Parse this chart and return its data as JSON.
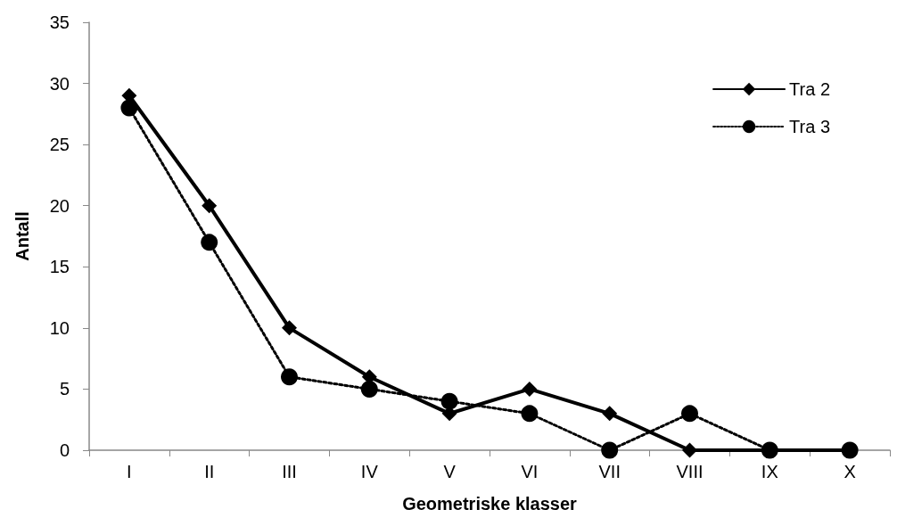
{
  "chart_data": {
    "type": "line",
    "xlabel": "Geometriske klasser",
    "ylabel": "Antall",
    "categories": [
      "I",
      "II",
      "III",
      "IV",
      "V",
      "VI",
      "VII",
      "VIII",
      "IX",
      "X"
    ],
    "series": [
      {
        "name": "Tra 2",
        "color": "#000000",
        "marker": "diamond",
        "line_style": "solid",
        "values": [
          29,
          20,
          10,
          6,
          3,
          5,
          3,
          0,
          0,
          0
        ]
      },
      {
        "name": "Tra 3",
        "color": "#000000",
        "marker": "circle",
        "line_style": "dotted",
        "values": [
          28,
          17,
          6,
          5,
          4,
          3,
          0,
          3,
          0,
          0
        ]
      }
    ],
    "ylim": [
      0,
      35
    ],
    "yticks": [
      0,
      5,
      10,
      15,
      20,
      25,
      30,
      35
    ],
    "grid": false,
    "legend": "top right"
  }
}
